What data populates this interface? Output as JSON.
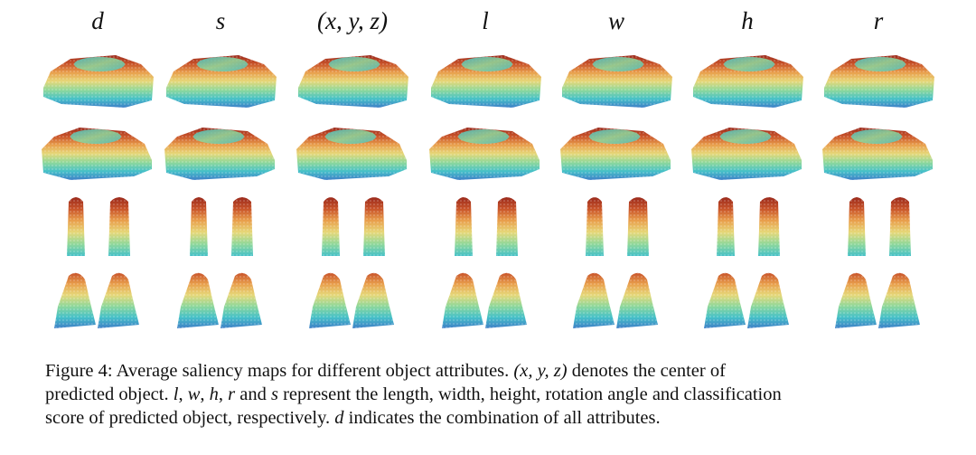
{
  "figure": {
    "columns": [
      "d",
      "s",
      "(x, y, z)",
      "l",
      "w",
      "h",
      "r"
    ],
    "rows": [
      {
        "name": "car-view-1",
        "kind": "car"
      },
      {
        "name": "car-view-2",
        "kind": "car"
      },
      {
        "name": "pedestrian-pair-1",
        "kind": "pedestrian-pair"
      },
      {
        "name": "cyclist-pair-1",
        "kind": "cyclist-pair"
      }
    ],
    "colormap": [
      "#3f7fc7",
      "#46c1c8",
      "#8fd89b",
      "#e6d87a",
      "#e9a04d",
      "#c9542a",
      "#9b2a1c"
    ]
  },
  "caption": {
    "line1_a": "Figure 4: Average saliency maps for different object attributes. ",
    "line1_math": "(x, y, z)",
    "line1_b": " denotes the center of",
    "line2_a": "predicted object. ",
    "line2_l": "l",
    "line2_sep1": ", ",
    "line2_w": "w",
    "line2_sep2": ", ",
    "line2_h": "h",
    "line2_sep3": ", ",
    "line2_r": "r",
    "line2_b": " and ",
    "line2_s": "s",
    "line2_c": " represent the length, width, height, rotation angle and classification",
    "line3_a": "score of predicted object, respectively. ",
    "line3_d": "d",
    "line3_b": " indicates the combination of all attributes."
  }
}
